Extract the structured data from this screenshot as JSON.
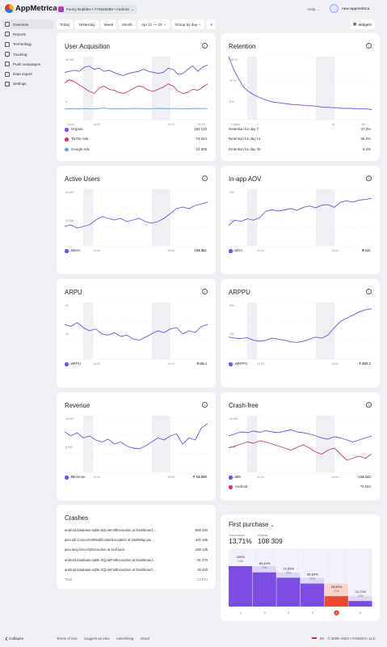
{
  "header": {
    "logo": "AppMetrica",
    "app_selector": "Funny Bubbles • 774849283 • Android",
    "help": "Help",
    "account": "new-appmetrica"
  },
  "sidebar": {
    "items": [
      {
        "label": "Overview",
        "icon": "overview-icon"
      },
      {
        "label": "Reports",
        "icon": "reports-icon"
      },
      {
        "label": "Technology",
        "icon": "technology-icon"
      },
      {
        "label": "Tracking",
        "icon": "tracking-icon"
      },
      {
        "label": "Push campaigns",
        "icon": "push-icon"
      },
      {
        "label": "Data export",
        "icon": "export-icon"
      },
      {
        "label": "Settings",
        "icon": "settings-icon"
      }
    ],
    "collapse": "Collapse"
  },
  "filters": {
    "today": "Today",
    "yesterday": "Yesterday",
    "week": "Week",
    "month": "Month",
    "range": "Apr 11 — 24",
    "group": "Group by day",
    "widgets": "Widgets"
  },
  "colors": {
    "purple": "#7b4de0",
    "pink": "#d0357c",
    "blue": "#5ba4e6",
    "grid": "#e5e7eb"
  },
  "acquisition": {
    "title": "User Acquisition",
    "legend": [
      {
        "name": "Organic",
        "value": "164 122"
      },
      {
        "name": "TikTok Ads",
        "value": "73 664"
      },
      {
        "name": "Google Ads",
        "value": "24 809"
      }
    ],
    "chart_data": {
      "type": "line",
      "yticks": [
        "60 000",
        "30 000",
        "0"
      ],
      "xticks": [
        "11.04",
        "14.04",
        "21.04",
        "24.04"
      ],
      "series": [
        {
          "name": "Organic",
          "values": [
            45000,
            46000,
            47000,
            46000,
            50000,
            51000,
            48000,
            49000,
            46000,
            47000,
            45000,
            43000,
            42000,
            44000,
            45000,
            46000,
            48000,
            46000,
            45000,
            44000,
            45000,
            49000,
            48000,
            43000,
            44000,
            48000,
            51000,
            46000,
            50000,
            52000
          ]
        },
        {
          "name": "TikTok Ads",
          "values": [
            35000,
            38000,
            36000,
            33000,
            30000,
            27000,
            25000,
            30000,
            32000,
            29000,
            28000,
            26000,
            25000,
            27000,
            30000,
            32000,
            31000,
            28000,
            27000,
            29000,
            31000,
            34000,
            32000,
            27000,
            25000,
            26000,
            29000,
            28000,
            31000,
            34000
          ]
        },
        {
          "name": "Google Ads",
          "values": [
            10000,
            10500,
            10200,
            10400,
            10600,
            10300,
            10200,
            10800,
            11000,
            10500,
            10300,
            10400,
            10200,
            10500,
            10800,
            10600,
            10300,
            10400,
            10600,
            10800,
            10600,
            10400,
            10700,
            10500,
            10300,
            10400,
            10600,
            10800,
            10600,
            10500
          ]
        }
      ],
      "ylim": [
        0,
        60000
      ]
    }
  },
  "retention": {
    "title": "Retention",
    "legend": [
      {
        "name": "Retention for day 7",
        "value": "47,3%"
      },
      {
        "name": "Retention for day 14",
        "value": "36,9%"
      },
      {
        "name": "Retention for day 30",
        "value": "9,4%"
      }
    ],
    "chart_data": {
      "type": "line",
      "yticks": [
        "100 %",
        "50 %",
        "0 %"
      ],
      "xticks": [
        "0 days",
        "7",
        "14",
        "30"
      ],
      "series": [
        {
          "name": "Retention",
          "values": [
            100,
            80,
            65,
            52,
            45,
            40,
            36,
            33,
            30,
            28,
            27,
            26,
            25,
            24,
            24,
            23,
            22,
            22,
            21,
            20,
            20,
            19,
            19,
            18,
            18,
            18,
            17,
            17,
            17,
            16
          ]
        }
      ],
      "ylim": [
        0,
        100
      ]
    }
  },
  "active_users": {
    "title": "Active Users",
    "legend": [
      {
        "name": "Users",
        "value": "284 351"
      }
    ],
    "chart_data": {
      "type": "line",
      "yticks": [
        "40 000",
        "20 000"
      ],
      "xticks": [
        "11.04",
        "14.04",
        "21.04",
        "24.04"
      ],
      "series": [
        {
          "name": "Users",
          "values": [
            22000,
            23000,
            21000,
            22000,
            23000,
            26000,
            28000,
            27000,
            26000,
            27000,
            25000,
            26000,
            27000,
            25000,
            24000,
            25000,
            27000,
            30000,
            33000,
            34000,
            33000,
            35000,
            36000,
            37000
          ]
        }
      ],
      "ylim": [
        10000,
        45000
      ]
    }
  },
  "aov": {
    "title": "In-app AOV",
    "legend": [
      {
        "name": "AOV",
        "value": "₮ 131"
      }
    ],
    "chart_data": {
      "type": "line",
      "yticks": [
        "200",
        "100"
      ],
      "xticks": [
        "11.04",
        "14.04",
        "21.04",
        "24.04"
      ],
      "series": [
        {
          "name": "AOV",
          "values": [
            80,
            100,
            95,
            105,
            100,
            110,
            135,
            140,
            135,
            140,
            145,
            138,
            150,
            155,
            148,
            158,
            160,
            150,
            170,
            175,
            170,
            178,
            180,
            185
          ]
        }
      ],
      "ylim": [
        0,
        220
      ]
    }
  },
  "arpu": {
    "title": "ARPU",
    "legend": [
      {
        "name": "ARPU",
        "value": "₮ 52.4"
      }
    ],
    "chart_data": {
      "type": "line",
      "yticks": [
        "80",
        "30"
      ],
      "xticks": [
        "11.04",
        "14.04",
        "21.04",
        "24.04"
      ],
      "series": [
        {
          "name": "ARPU",
          "values": [
            55,
            52,
            58,
            50,
            45,
            48,
            40,
            38,
            42,
            36,
            38,
            32,
            30,
            35,
            40,
            45,
            42,
            48,
            50,
            40,
            45,
            42,
            52,
            55
          ]
        }
      ],
      "ylim": [
        0,
        90
      ]
    }
  },
  "arppu": {
    "title": "ARPPU",
    "legend": [
      {
        "name": "ARPPU",
        "value": "₮ 287.2"
      }
    ],
    "chart_data": {
      "type": "line",
      "yticks": [
        "300",
        "150"
      ],
      "xticks": [
        "11.04",
        "14.04",
        "21.04",
        "24.04"
      ],
      "series": [
        {
          "name": "ARPPU",
          "values": [
            165,
            160,
            158,
            162,
            150,
            145,
            150,
            160,
            155,
            150,
            142,
            140,
            145,
            155,
            165,
            160,
            175,
            210,
            240,
            255,
            270,
            285,
            295,
            300
          ]
        }
      ],
      "ylim": [
        60,
        330
      ]
    }
  },
  "revenue": {
    "title": "Revenue",
    "legend": [
      {
        "name": "Revenue",
        "value": "₮ 82 508"
      }
    ],
    "chart_data": {
      "type": "line",
      "yticks": [
        "16 000",
        "8 000"
      ],
      "xticks": [
        "11.04",
        "14.04",
        "21.04",
        "24.04"
      ],
      "series": [
        {
          "name": "Revenue",
          "values": [
            14000,
            13000,
            13800,
            12500,
            13000,
            12000,
            11500,
            12200,
            11000,
            11500,
            10500,
            10000,
            9800,
            10500,
            11500,
            12500,
            12000,
            13000,
            13500,
            11000,
            12500,
            12000,
            15000,
            16000
          ]
        }
      ],
      "ylim": [
        4000,
        18000
      ]
    }
  },
  "crash_free": {
    "title": "Crash-free",
    "legend": [
      {
        "name": "iOS",
        "value": "164 122"
      },
      {
        "name": "Android",
        "value": "73 664"
      }
    ],
    "chart_data": {
      "type": "line",
      "yticks": [
        "16 000",
        "8 000"
      ],
      "xticks": [
        "11.04",
        "14.04",
        "21.04",
        "24.04"
      ],
      "series": [
        {
          "name": "iOS",
          "values": [
            13000,
            13500,
            14000,
            13800,
            14200,
            13900,
            14300,
            14000,
            13800,
            14200,
            14500,
            14000,
            13800,
            13500,
            13000,
            12500,
            12200,
            12800,
            12500,
            12000,
            11500,
            12000,
            12500,
            13000
          ]
        },
        {
          "name": "Android",
          "values": [
            10000,
            10500,
            11000,
            11500,
            11200,
            11800,
            11500,
            11000,
            10500,
            10000,
            9500,
            10200,
            10800,
            10000,
            9000,
            8500,
            9500,
            10000,
            8500,
            7000,
            7500,
            8000,
            7500,
            8500
          ]
        }
      ],
      "ylim": [
        4000,
        18000
      ]
    }
  },
  "crashes": {
    "title": "Crashes",
    "rows": [
      {
        "name": "android.database.sqlite.SQLiteFullException at Dashboard…",
        "value": "589 320"
      },
      {
        "name": "java.util.ConcurrentModificationException at HashMap.jav…",
        "value": "420 185"
      },
      {
        "name": "java.lang.SecurityException at zzaf.java",
        "value": "169 135"
      },
      {
        "name": "android.database.sqlite.SQLiteFullException at Dashboard…",
        "value": "91 270"
      },
      {
        "name": "android.database.sqlite.SQLiteFullException at Dashboard…",
        "value": "49 320"
      }
    ],
    "total_label": "Total",
    "total_value": "23 874"
  },
  "funnel": {
    "title": "First purchase",
    "conversion_label": "Conversion",
    "conversion_value": "13,71%",
    "output_label": "Output",
    "output_value": "108 309",
    "steps": [
      {
        "pct": "100%",
        "count": "848k",
        "value": 100,
        "x": "1",
        "color": "#7b4de0"
      },
      {
        "pct": "84,44%",
        "count": "785k",
        "value": 84.44,
        "x": "0",
        "color": "#7b4de0"
      },
      {
        "pct": "71,25%",
        "count": "565k",
        "value": 71.25,
        "x": "0",
        "color": "#7b4de0"
      },
      {
        "pct": "56,83%",
        "count": "360k",
        "value": 56.83,
        "x": "0",
        "color": "#7b4de0"
      },
      {
        "pct": "25,60%",
        "count": "215k",
        "value": 25.6,
        "x": "1",
        "color": "#e8492f"
      },
      {
        "pct": "13,71%",
        "count": "108k",
        "value": 13.71,
        "x": "0",
        "color": "#7b4de0"
      }
    ]
  },
  "footer": {
    "terms": "Terms of Use",
    "suggest": "Suggest an idea",
    "advertising": "Advertising",
    "about": "About",
    "lang": "En",
    "copyright": "© 2009–2023 «YANDEX» LLC"
  }
}
